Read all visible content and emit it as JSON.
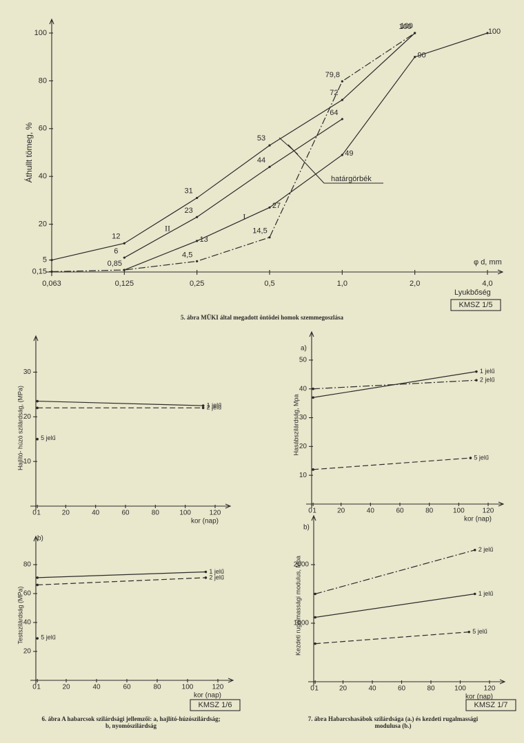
{
  "chart_data": [
    {
      "type": "line",
      "ylabel": "Áthullt tömeg, %",
      "x_unit": "φ d, mm",
      "xlabel": "Lyukbőség",
      "annotation": "határgörbék",
      "stamp": "KMSZ 1/5",
      "caption": [
        "5. ábra MÜKI által megadott öntödei homok szemmegoszlása"
      ],
      "categories": [
        "0,063",
        "0,125",
        "0,25",
        "0,5",
        "1,0",
        "2,0",
        "4,0"
      ],
      "ylim": [
        0,
        100
      ],
      "yticks": [
        {
          "value": 0.15,
          "label": "0,15"
        },
        5,
        20,
        40,
        60,
        80,
        100
      ],
      "series": [
        {
          "color": "#2a2a2a",
          "dash": "solid",
          "values": [
            5,
            12,
            31,
            53,
            72,
            100,
            null
          ],
          "value_labels": [
            null,
            "12",
            "31",
            "53",
            "72",
            "100",
            null
          ]
        },
        {
          "name": "II",
          "color": "#2a2a2a",
          "dash": "solid",
          "values": [
            null,
            6,
            23,
            44,
            64,
            null,
            null
          ],
          "value_labels": [
            null,
            "6",
            "23",
            "44",
            "64",
            null,
            null
          ]
        },
        {
          "name": "I",
          "color": "#2a2a2a",
          "dash": "solid",
          "values": [
            null,
            0.85,
            13,
            27,
            49,
            90,
            100
          ],
          "value_labels": [
            null,
            null,
            "13",
            "27",
            "49",
            "90",
            "100"
          ]
        },
        {
          "color": "#2a2a2a",
          "dash": "dashdot",
          "values": [
            0.15,
            0.85,
            4.5,
            14.5,
            79.8,
            100,
            null
          ],
          "value_labels": [
            null,
            "0,85",
            "4,5",
            "14,5",
            "79,8",
            "100",
            null
          ]
        }
      ]
    },
    {
      "type": "line",
      "ylabel": "Hajlító- húzó szilárdság, (MPa)",
      "xlabel": "kor (nap)",
      "xlim": [
        0,
        120
      ],
      "xticks": [
        0,
        1,
        20,
        40,
        60,
        80,
        100,
        120
      ],
      "ylim": [
        0,
        35
      ],
      "yticks": [
        10,
        20,
        30
      ],
      "series": [
        {
          "name": "1 jelű",
          "color": "#2a2a2a",
          "dash": "solid",
          "x": [
            1,
            112
          ],
          "values": [
            23.5,
            22.5
          ]
        },
        {
          "name": "2 jelű",
          "color": "#2a2a2a",
          "dash": "dashed",
          "x": [
            1,
            112
          ],
          "values": [
            22,
            22
          ]
        },
        {
          "name": "5 jelű",
          "color": "#2a2a2a",
          "dash": "solid",
          "x": [
            1
          ],
          "values": [
            15
          ]
        }
      ]
    },
    {
      "type": "line",
      "panel": "b)",
      "ylabel": "Testszilárdság (MPa)",
      "xlabel": "kor (nap)",
      "stamp": "KMSZ 1/6",
      "caption": [
        "6. ábra A habarcsok szilárdsági jellemzői: a, hajlító-húzószilárdság;",
        "b, nyomószilárdság"
      ],
      "xlim": [
        0,
        120
      ],
      "xticks": [
        0,
        1,
        20,
        40,
        60,
        80,
        100,
        120
      ],
      "ylim": [
        0,
        90
      ],
      "yticks": [
        20,
        40,
        60,
        80
      ],
      "series": [
        {
          "name": "1 jelű",
          "color": "#2a2a2a",
          "dash": "solid",
          "x": [
            1,
            112
          ],
          "values": [
            71,
            75
          ]
        },
        {
          "name": "2 jelű",
          "color": "#2a2a2a",
          "dash": "dashed",
          "x": [
            1,
            112
          ],
          "values": [
            66,
            71
          ]
        },
        {
          "name": "5 jelű",
          "color": "#2a2a2a",
          "dash": "solid",
          "x": [
            1
          ],
          "values": [
            29
          ]
        }
      ]
    },
    {
      "type": "line",
      "panel": "a)",
      "ylabel": "Hasábszilárdság, Mpa",
      "xlabel": "kor (nap)",
      "xlim": [
        0,
        120
      ],
      "xticks": [
        0,
        1,
        20,
        40,
        60,
        80,
        100,
        120
      ],
      "ylim": [
        0,
        55
      ],
      "yticks": [
        10,
        20,
        30,
        40,
        50
      ],
      "series": [
        {
          "name": "1 jelű",
          "color": "#2a2a2a",
          "dash": "solid",
          "x": [
            1,
            112
          ],
          "values": [
            37,
            46
          ]
        },
        {
          "name": "2 jelű",
          "color": "#2a2a2a",
          "dash": "dashdot",
          "x": [
            1,
            112
          ],
          "values": [
            40,
            43
          ]
        },
        {
          "name": "5 jelű",
          "color": "#2a2a2a",
          "dash": "dashed",
          "x": [
            1,
            108
          ],
          "values": [
            12,
            16
          ]
        }
      ]
    },
    {
      "type": "line",
      "panel": "b)",
      "ylabel": "Kezdeti rugalmassági modulus, Mpa",
      "xlabel": "kor (nap)",
      "stamp": "KMSZ 1/7",
      "caption": [
        "7. ábra Habarcshasábok szilárdsága (a.) és kezdeti rugalmassági",
        "modulusa (b.)"
      ],
      "xlim": [
        0,
        120
      ],
      "xticks": [
        0,
        1,
        20,
        40,
        60,
        80,
        100,
        120
      ],
      "ylim": [
        0,
        2600
      ],
      "yticks": [
        1000,
        2000
      ],
      "series": [
        {
          "name": "2 jelű",
          "color": "#2a2a2a",
          "dash": "dashdot",
          "x": [
            1,
            110
          ],
          "values": [
            1500,
            2250
          ]
        },
        {
          "name": "1 jelű",
          "color": "#2a2a2a",
          "dash": "solid",
          "x": [
            1,
            110
          ],
          "values": [
            1100,
            1500
          ]
        },
        {
          "name": "5 jelű",
          "color": "#2a2a2a",
          "dash": "dashed",
          "x": [
            1,
            106
          ],
          "values": [
            650,
            850
          ]
        }
      ]
    }
  ]
}
